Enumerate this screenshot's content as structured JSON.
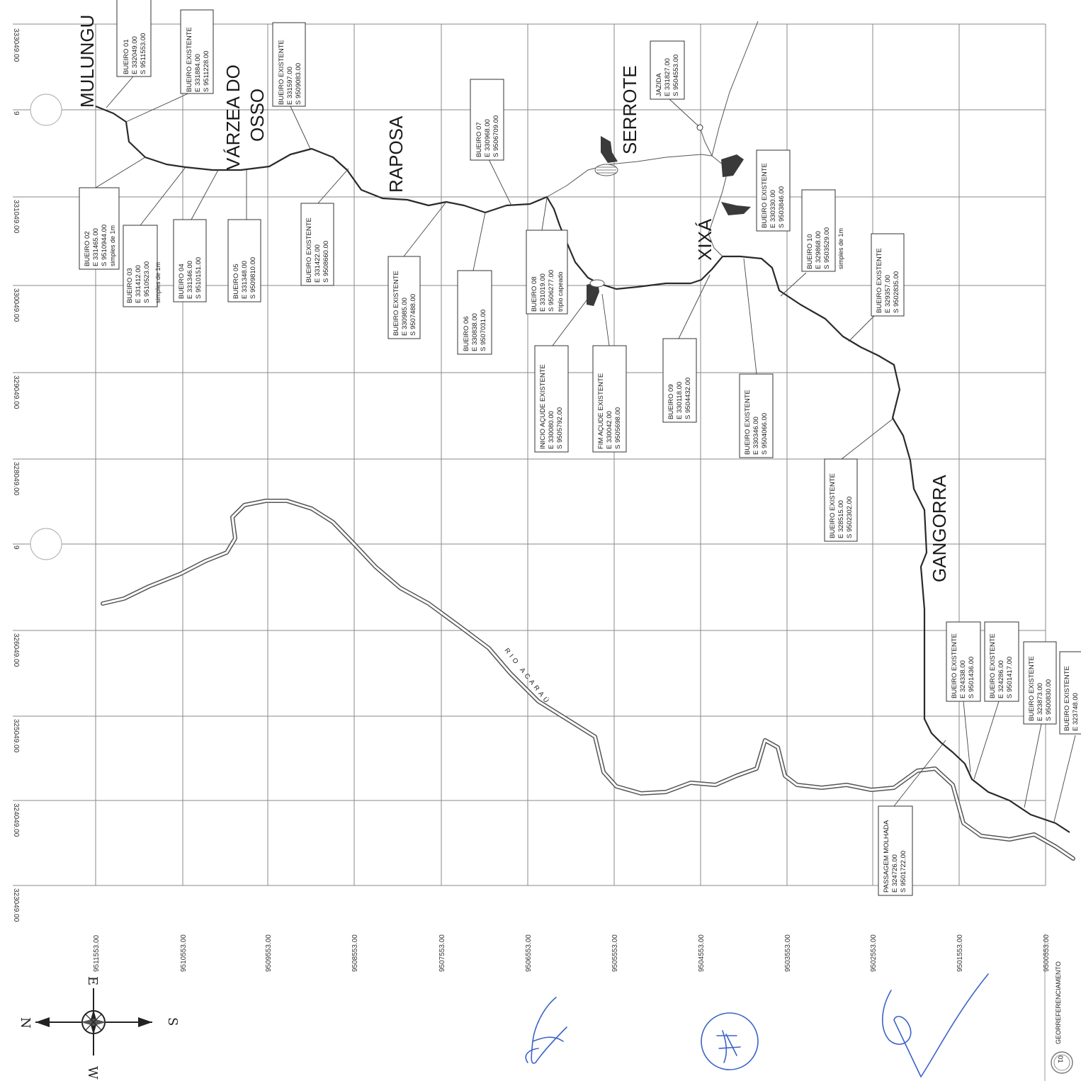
{
  "place_names": [
    "MULUNGU",
    "VÁRZEA DO",
    "OSSO",
    "RAPOSA",
    "SERROTE",
    "XIXÁ",
    "GANGORRA"
  ],
  "river_name": "RIO ACARAÚ",
  "easting_labels": [
    "333049.00",
    "9",
    "331049.00",
    "330049.00",
    "329049.00",
    "328049.00",
    "9",
    "326049.00",
    "325049.00",
    "324049.00",
    "323049.00"
  ],
  "northing_labels": [
    "9511553.00",
    "9510553.00",
    "9509553.00",
    "9508553.00",
    "9507553.00",
    "9506553.00",
    "9505553.00",
    "9504553.00",
    "9503553.00",
    "9502553.00",
    "9501553.00",
    "9500553.00"
  ],
  "callouts": [
    {
      "id": "bueiro-01",
      "lines": [
        "BUEIRO 01",
        "E 332049.00",
        "S 9511553.00"
      ]
    },
    {
      "id": "bueiro-existente-a",
      "lines": [
        "BUEIRO EXISTENTE",
        "E 331884.00",
        "S 9511228.00"
      ]
    },
    {
      "id": "bueiro-existente-b",
      "lines": [
        "BUEIRO EXISTENTE",
        "E 331597.00",
        "S 9509083.00"
      ]
    },
    {
      "id": "bueiro-07",
      "lines": [
        "BUEIRO 07",
        "E 330968.00",
        "S 9506709.00"
      ]
    },
    {
      "id": "jazida",
      "lines": [
        "JAZIDA",
        "E 331827.00",
        "S 9504553.00"
      ]
    },
    {
      "id": "bueiro-02",
      "lines": [
        "BUEIRO 02",
        "E 331465.00",
        "S 9510944.00",
        "simples de 1m"
      ]
    },
    {
      "id": "bueiro-03",
      "lines": [
        "BUEIRO 03",
        "E 331412.00",
        "S 9510523.00",
        "simples de 1m"
      ]
    },
    {
      "id": "bueiro-04",
      "lines": [
        "BUEIRO 04",
        "E 331346.00",
        "S 9510151.00"
      ]
    },
    {
      "id": "bueiro-05",
      "lines": [
        "BUEIRO 05",
        "E 331348.00",
        "S 9509810.00"
      ]
    },
    {
      "id": "bueiro-existente-c",
      "lines": [
        "BUEIRO EXISTENTE",
        "E 331422.00",
        "S 9508660.00"
      ]
    },
    {
      "id": "bueiro-existente-d",
      "lines": [
        "BUEIRO EXISTENTE",
        "E 330985.00",
        "S 9507488.00"
      ]
    },
    {
      "id": "bueiro-06",
      "lines": [
        "BUEIRO 06",
        "E 330838.00",
        "S 9507031.00"
      ]
    },
    {
      "id": "bueiro-08",
      "lines": [
        "BUEIRO 08",
        "E 331019.00",
        "S 9506277.00",
        "triplo capeado"
      ]
    },
    {
      "id": "inicio-acude",
      "lines": [
        "INICIO AÇUDE EXISTENTE",
        "E 330080.00",
        "S 9505792.00"
      ]
    },
    {
      "id": "fim-acude",
      "lines": [
        "FIM AÇUDE EXISTENTE",
        "E 330042.00",
        "S 9505698.00"
      ]
    },
    {
      "id": "bueiro-09",
      "lines": [
        "BUEIRO 09",
        "E 330118.00",
        "S 9504432.00"
      ]
    },
    {
      "id": "bueiro-existente-e",
      "lines": [
        "BUEIRO EXISTENTE",
        "E 330330.00",
        "S 9503846.00"
      ]
    },
    {
      "id": "bueiro-10",
      "lines": [
        "BUEIRO 10",
        "E 329868.00",
        "S 9503529.00",
        "simples de 1m"
      ]
    },
    {
      "id": "bueiro-existente-f",
      "lines": [
        "BUEIRO EXISTENTE",
        "E 329357.00",
        "S 9502835.00"
      ]
    },
    {
      "id": "bueiro-existente-g",
      "lines": [
        "BUEIRO EXISTENTE",
        "E 330346.00",
        "S 9504066.00"
      ]
    },
    {
      "id": "bueiro-existente-h",
      "lines": [
        "BUEIRO EXISTENTE",
        "E 328515.00",
        "S 9502302.00"
      ]
    },
    {
      "id": "bueiro-existente-i",
      "lines": [
        "BUEIRO EXISTENTE",
        "E 324338.00",
        "S 9501436.00"
      ]
    },
    {
      "id": "bueiro-existente-j",
      "lines": [
        "BUEIRO EXISTENTE",
        "E 324286.00",
        "S 9501417.00"
      ]
    },
    {
      "id": "bueiro-existente-k",
      "lines": [
        "BUEIRO EXISTENTE",
        "E 323873.00",
        "S 9500830.00"
      ]
    },
    {
      "id": "bueiro-existente-l",
      "lines": [
        "BUEIRO EXISTENTE",
        "E 323748.00"
      ]
    },
    {
      "id": "passagem-molhada",
      "lines": [
        "PASSAGEM MOLHADA",
        "E 324726.00",
        "S 9501722.00"
      ]
    }
  ],
  "compass": {
    "n": "N",
    "s": "S",
    "e": "E",
    "w": "W"
  },
  "footer": {
    "page_number": "01",
    "sheet_title": "GEORREFERENCIAMENTO"
  }
}
